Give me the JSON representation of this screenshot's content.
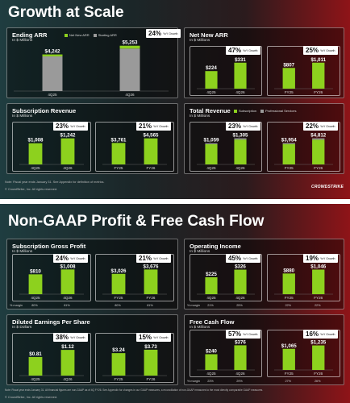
{
  "slide1": {
    "title": "Growth at Scale",
    "footer_note": "Note: Fiscal year ends January 31. See Appendix for definition of metrics.",
    "copyright": "© CrowdStrike, Inc. All rights reserved.",
    "logo": "CROWDSTRIKE"
  },
  "slide2": {
    "title": "Non-GAAP Profit & Free Cash Flow",
    "footer_note": "Note: Fiscal year ends January 31. All financial figures are non-GAAP as of 4Q FY26. See Appendix for changes in our GAAP measures, a reconciliation of non-GAAP measures to the most directly comparable GAAP measures.",
    "copyright": "© CrowdStrike, Inc. All rights reserved.",
    "logo": "CROWDSTRIKE"
  },
  "colors": {
    "green": "#8dd11e",
    "gray": "#9a9a9a",
    "badge_bg": "#ffffff"
  },
  "yoy_label": "YoY Growth",
  "margin_label": "% margin",
  "chart_data": [
    {
      "id": "ending-arr",
      "type": "bar",
      "stacked": true,
      "title": "Ending ARR",
      "unit": "In $ Millions",
      "categories": [
        "4Q25",
        "4Q26"
      ],
      "series": [
        {
          "name": "Net New ARR",
          "color": "#8dd11e",
          "values": [
            224,
            331
          ]
        },
        {
          "name": "Starting ARR",
          "color": "#9a9a9a",
          "values": [
            4018,
            4922
          ]
        }
      ],
      "labels": [
        "$4,242",
        "$5,253"
      ],
      "growth": "24%",
      "legend_position": "top-right",
      "ylim": [
        0,
        5600
      ]
    },
    {
      "id": "net-new-arr",
      "type": "bar",
      "title": "Net New ARR",
      "unit": "In $ Millions",
      "groups": [
        {
          "categories": [
            "4Q25",
            "4Q26"
          ],
          "values": [
            224,
            331
          ],
          "labels": [
            "$224",
            "$331"
          ],
          "growth": "47%",
          "ylim": [
            0,
            380
          ]
        },
        {
          "categories": [
            "FY25",
            "FY26"
          ],
          "values": [
            807,
            1011
          ],
          "labels": [
            "$807",
            "$1,011"
          ],
          "growth": "25%",
          "ylim": [
            0,
            1160
          ]
        }
      ]
    },
    {
      "id": "subscription-revenue",
      "type": "bar",
      "title": "Subscription Revenue",
      "unit": "In $ Millions",
      "groups": [
        {
          "categories": [
            "4Q25",
            "4Q26"
          ],
          "values": [
            1008,
            1242
          ],
          "labels": [
            "$1,008",
            "$1,242"
          ],
          "growth": "23%",
          "ylim": [
            0,
            1420
          ]
        },
        {
          "categories": [
            "FY25",
            "FY26"
          ],
          "values": [
            3761,
            4565
          ],
          "labels": [
            "$3,761",
            "$4,565"
          ],
          "growth": "21%",
          "ylim": [
            0,
            5220
          ]
        }
      ]
    },
    {
      "id": "total-revenue",
      "type": "bar",
      "stacked": true,
      "title": "Total Revenue",
      "unit": "In $ Millions",
      "legend": [
        {
          "name": "Subscription",
          "color": "#8dd11e"
        },
        {
          "name": "Professional Services",
          "color": "#9a9a9a"
        }
      ],
      "groups": [
        {
          "categories": [
            "4Q25",
            "4Q26"
          ],
          "series": [
            {
              "name": "Subscription",
              "color": "#8dd11e",
              "values": [
                1008,
                1242
              ]
            },
            {
              "name": "Professional Services",
              "color": "#9a9a9a",
              "values": [
                51,
                63
              ]
            }
          ],
          "labels": [
            "$1,059",
            "$1,305"
          ],
          "growth": "23%",
          "ylim": [
            0,
            1490
          ]
        },
        {
          "categories": [
            "FY25",
            "FY26"
          ],
          "series": [
            {
              "name": "Subscription",
              "color": "#8dd11e",
              "values": [
                3761,
                4565
              ]
            },
            {
              "name": "Professional Services",
              "color": "#9a9a9a",
              "values": [
                193,
                247
              ]
            }
          ],
          "labels": [
            "$3,954",
            "$4,812"
          ],
          "growth": "22%",
          "ylim": [
            0,
            5500
          ]
        }
      ]
    },
    {
      "id": "subscription-gross-profit",
      "type": "bar",
      "title": "Subscription Gross Profit",
      "unit": "In $ Millions",
      "groups": [
        {
          "categories": [
            "4Q25",
            "4Q26"
          ],
          "values": [
            810,
            1008
          ],
          "labels": [
            "$810",
            "$1,008"
          ],
          "growth": "24%",
          "margins": [
            "80%",
            "81%"
          ],
          "ylim": [
            0,
            1150
          ]
        },
        {
          "categories": [
            "FY25",
            "FY26"
          ],
          "values": [
            3026,
            3676
          ],
          "labels": [
            "$3,026",
            "$3,676"
          ],
          "growth": "21%",
          "margins": [
            "80%",
            "81%"
          ],
          "ylim": [
            0,
            4200
          ]
        }
      ]
    },
    {
      "id": "operating-income",
      "type": "bar",
      "title": "Operating Income",
      "unit": "In $ Millions",
      "groups": [
        {
          "categories": [
            "4Q25",
            "4Q26"
          ],
          "values": [
            225,
            326
          ],
          "labels": [
            "$225",
            "$326"
          ],
          "growth": "45%",
          "margins": [
            "21%",
            "25%"
          ],
          "ylim": [
            0,
            375
          ]
        },
        {
          "categories": [
            "FY25",
            "FY26"
          ],
          "values": [
            880,
            1046
          ],
          "labels": [
            "$880",
            "$1,046"
          ],
          "growth": "19%",
          "margins": [
            "22%",
            "22%"
          ],
          "ylim": [
            0,
            1200
          ]
        }
      ]
    },
    {
      "id": "diluted-eps",
      "type": "bar",
      "title": "Diluted Earnings Per Share",
      "unit": "In $ Dollars",
      "groups": [
        {
          "categories": [
            "4Q25",
            "4Q26"
          ],
          "values": [
            0.81,
            1.12
          ],
          "labels": [
            "$0.81",
            "$1.12"
          ],
          "growth": "38%",
          "ylim": [
            0,
            1.3
          ]
        },
        {
          "categories": [
            "FY25",
            "FY26"
          ],
          "values": [
            3.24,
            3.73
          ],
          "labels": [
            "$3.24",
            "$3.73"
          ],
          "growth": "15%",
          "ylim": [
            0,
            4.3
          ]
        }
      ]
    },
    {
      "id": "free-cash-flow",
      "type": "bar",
      "title": "Free Cash Flow",
      "unit": "In $ Millions",
      "groups": [
        {
          "categories": [
            "4Q25",
            "4Q26"
          ],
          "values": [
            240,
            376
          ],
          "labels": [
            "$240",
            "$376"
          ],
          "growth": "57%",
          "margins": [
            "23%",
            "29%"
          ],
          "ylim": [
            0,
            430
          ]
        },
        {
          "categories": [
            "FY25",
            "FY26"
          ],
          "values": [
            1065,
            1235
          ],
          "labels": [
            "$1,065",
            "$1,235"
          ],
          "growth": "16%",
          "margins": [
            "27%",
            "26%"
          ],
          "ylim": [
            0,
            1420
          ]
        }
      ]
    }
  ]
}
